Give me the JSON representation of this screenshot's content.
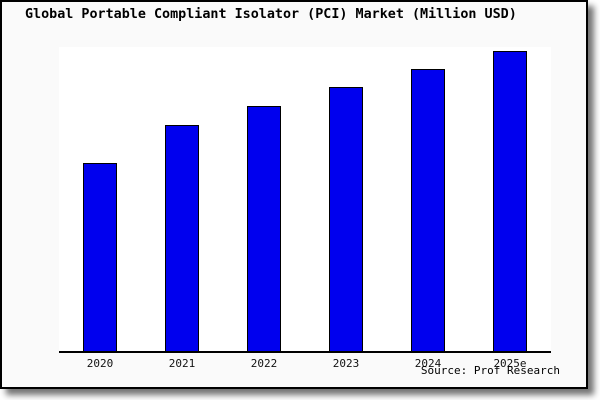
{
  "title": "Global Portable Compliant Isolator (PCI) Market (Million USD)",
  "source": "Source: Prof Research",
  "colors": {
    "bar": "#0000ee",
    "bar_border": "#000000",
    "frame_bg": "#fafafa",
    "plot_bg": "#ffffff",
    "axis": "#000000"
  },
  "chart_data": {
    "type": "bar",
    "title": "Global Portable Compliant Isolator (PCI) Market (Million USD)",
    "categories": [
      "2020",
      "2021",
      "2022",
      "2023",
      "2024",
      "2025e"
    ],
    "values": [
      62.7,
      75.3,
      81.7,
      88,
      94,
      100
    ],
    "xlabel": "",
    "ylabel": "",
    "ylim": [
      0,
      100
    ],
    "value_note": "No y-axis or data labels shown; values estimated from bar heights relative to 2025e = 100",
    "grid": false,
    "legend": "none"
  }
}
